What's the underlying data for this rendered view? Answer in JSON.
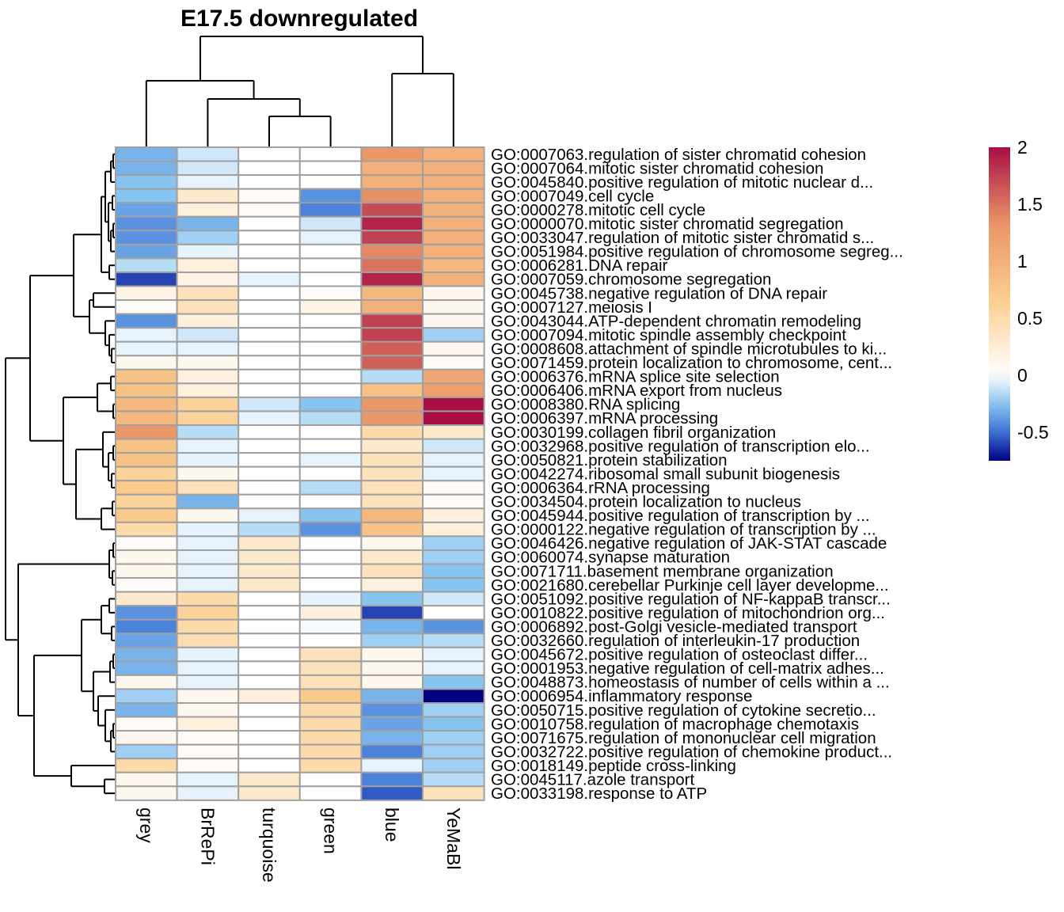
{
  "chart_data": {
    "type": "heatmap",
    "title": "E17.5 downregulated",
    "columns": [
      "grey",
      "BrRePi",
      "turquoise",
      "green",
      "blue",
      "YeMaBl"
    ],
    "rows": [
      "GO:0007063.regulation of sister chromatid cohesion",
      "GO:0007064.mitotic sister chromatid cohesion",
      "GO:0045840.positive regulation of mitotic nuclear d...",
      "GO:0007049.cell cycle",
      "GO:0000278.mitotic cell cycle",
      "GO:0000070.mitotic sister chromatid segregation",
      "GO:0033047.regulation of mitotic sister chromatid s...",
      "GO:0051984.positive regulation of chromosome segreg...",
      "GO:0006281.DNA repair",
      "GO:0007059.chromosome segregation",
      "GO:0045738.negative regulation of DNA repair",
      "GO:0007127.meiosis I",
      "GO:0043044.ATP-dependent chromatin remodeling",
      "GO:0007094.mitotic spindle assembly checkpoint",
      "GO:0008608.attachment of spindle microtubules to ki...",
      "GO:0071459.protein localization to chromosome, cent...",
      "GO:0006376.mRNA splice site selection",
      "GO:0006406.mRNA export from nucleus",
      "GO:0008380.RNA splicing",
      "GO:0006397.mRNA processing",
      "GO:0030199.collagen fibril organization",
      "GO:0032968.positive regulation of transcription elo...",
      "GO:0050821.protein stabilization",
      "GO:0042274.ribosomal small subunit biogenesis",
      "GO:0006364.rRNA processing",
      "GO:0034504.protein localization to nucleus",
      "GO:0045944.positive regulation of transcription by ...",
      "GO:0000122.negative regulation of transcription by ...",
      "GO:0046426.negative regulation of JAK-STAT cascade",
      "GO:0060074.synapse maturation",
      "GO:0071711.basement membrane organization",
      "GO:0021680.cerebellar Purkinje cell layer developme...",
      "GO:0051092.positive regulation of NF-kappaB transcr...",
      "GO:0010822.positive regulation of mitochondrion org...",
      "GO:0006892.post-Golgi vesicle-mediated transport",
      "GO:0032660.regulation of interleukin-17 production",
      "GO:0045672.positive regulation of osteoclast differ...",
      "GO:0001953.negative regulation of cell-matrix adhes...",
      "GO:0048873.homeostasis of number of cells within a ...",
      "GO:0006954.inflammatory response",
      "GO:0050715.positive regulation of cytokine secretio...",
      "GO:0010758.regulation of macrophage chemotaxis",
      "GO:0071675.regulation of mononuclear cell migration",
      "GO:0032722.positive regulation of chemokine product...",
      "GO:0018149.peptide cross-linking",
      "GO:0045117.azole transport",
      "GO:0033198.response to ATP"
    ],
    "values": [
      [
        -0.3,
        -0.1,
        0,
        0,
        1.3,
        1.0
      ],
      [
        -0.3,
        -0.1,
        0,
        0,
        1.0,
        1.0
      ],
      [
        -0.25,
        -0.05,
        0,
        0,
        1.0,
        1.0
      ],
      [
        -0.25,
        0.3,
        0.05,
        -0.4,
        1.35,
        1.0
      ],
      [
        -0.35,
        0.2,
        0.05,
        -0.45,
        1.7,
        1.0
      ],
      [
        -0.4,
        -0.3,
        0,
        -0.1,
        1.9,
        1.0
      ],
      [
        -0.4,
        -0.2,
        0,
        -0.05,
        1.75,
        1.0
      ],
      [
        -0.35,
        -0.05,
        0,
        0,
        1.4,
        1.0
      ],
      [
        -0.15,
        0.2,
        0,
        0,
        1.5,
        0.9
      ],
      [
        -0.6,
        0.15,
        -0.05,
        0,
        1.9,
        1.0
      ],
      [
        0.15,
        0.4,
        0,
        0.05,
        0.9,
        0.1
      ],
      [
        0.05,
        0.4,
        0,
        0.15,
        1.0,
        0.1
      ],
      [
        -0.4,
        0.2,
        0,
        0,
        1.75,
        0.1
      ],
      [
        -0.05,
        -0.1,
        0,
        0,
        1.75,
        -0.2
      ],
      [
        -0.05,
        -0.05,
        0,
        0,
        1.6,
        0.1
      ],
      [
        0.1,
        0.1,
        0,
        0,
        1.6,
        0.05
      ],
      [
        0.8,
        0.2,
        0,
        0,
        -0.15,
        1.1
      ],
      [
        0.8,
        0.2,
        0,
        0,
        0.8,
        1.2
      ],
      [
        0.9,
        0.6,
        -0.1,
        -0.25,
        1.3,
        2.0
      ],
      [
        0.9,
        0.6,
        -0.05,
        -0.15,
        1.3,
        2.0
      ],
      [
        1.3,
        -0.15,
        0,
        0,
        0.5,
        0.3
      ],
      [
        0.8,
        -0.05,
        0,
        0,
        0.3,
        -0.1
      ],
      [
        0.8,
        -0.05,
        0,
        -0.05,
        0.4,
        -0.05
      ],
      [
        0.6,
        0.1,
        0,
        0,
        0.4,
        -0.05
      ],
      [
        0.7,
        0.4,
        0,
        -0.15,
        0.4,
        0.05
      ],
      [
        0.6,
        -0.3,
        0,
        0,
        0.4,
        0.05
      ],
      [
        0.7,
        0.1,
        -0.05,
        -0.25,
        0.9,
        0.2
      ],
      [
        0.5,
        -0.05,
        -0.15,
        -0.4,
        0.8,
        0.2
      ],
      [
        0.05,
        -0.05,
        0.3,
        0,
        0.1,
        -0.2
      ],
      [
        0.1,
        -0.05,
        0.3,
        0,
        0.3,
        -0.2
      ],
      [
        0.1,
        -0.05,
        0.3,
        0,
        0.4,
        -0.25
      ],
      [
        0.05,
        -0.05,
        0.3,
        0,
        0.2,
        -0.25
      ],
      [
        0.3,
        0.5,
        0,
        -0.05,
        -0.25,
        -0.1
      ],
      [
        -0.4,
        0.6,
        0,
        0.2,
        -0.6,
        0.02
      ],
      [
        -0.45,
        0.5,
        0,
        -0.02,
        -0.3,
        -0.4
      ],
      [
        -0.35,
        0.45,
        0,
        0,
        -0.2,
        -0.15
      ],
      [
        -0.3,
        -0.05,
        0,
        0.4,
        0.1,
        -0.05
      ],
      [
        -0.3,
        -0.05,
        0,
        0.4,
        0.1,
        -0.05
      ],
      [
        0.1,
        -0.05,
        0,
        0.4,
        0.1,
        -0.25
      ],
      [
        -0.2,
        0.1,
        0.2,
        0.7,
        -0.3,
        -0.75
      ],
      [
        -0.3,
        0.1,
        0,
        0.5,
        -0.4,
        -0.2
      ],
      [
        0.05,
        0.2,
        0,
        0.5,
        -0.35,
        -0.25
      ],
      [
        0.1,
        0.05,
        0,
        0.5,
        -0.3,
        -0.2
      ],
      [
        -0.2,
        0.05,
        0,
        0.5,
        -0.45,
        -0.2
      ],
      [
        0.5,
        0.05,
        0,
        0.5,
        -0.05,
        -0.2
      ],
      [
        0.1,
        -0.05,
        0.3,
        0.02,
        -0.45,
        -0.15
      ],
      [
        0.1,
        -0.05,
        0.3,
        0.02,
        -0.55,
        0.4
      ]
    ],
    "colorbar": {
      "ticks": [
        "2",
        "1.5",
        "1",
        "0.5",
        "0",
        "-0.5"
      ],
      "tick_values": [
        2,
        1.5,
        1,
        0.5,
        0,
        -0.5
      ],
      "range": [
        -0.75,
        2.0
      ],
      "colors": [
        "#000080",
        "#3d71d4",
        "#87c4f0",
        "#ffffff",
        "#fbcd8e",
        "#e99467",
        "#a80f44"
      ]
    }
  }
}
